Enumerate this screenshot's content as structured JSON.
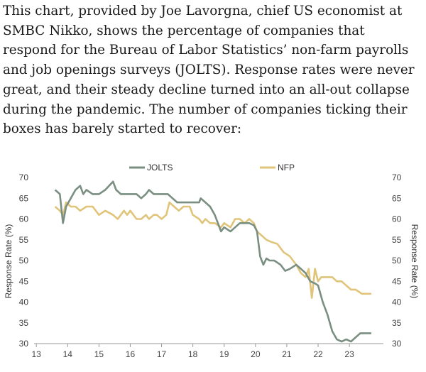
{
  "article": {
    "paragraph": "This chart, provided by Joe Lavorgna, chief US economist at SMBC Nikko, shows the percentage of companies that respond for the Bureau of Labor Statistics’ non-farm payrolls and job openings surveys (JOLTS). Response rates were never great, and their steady decline turned into an all-out collapse during the pandemic. The number of companies ticking their boxes has barely started to recover:"
  },
  "chart_data": {
    "type": "line",
    "ylabel_left": "Response Rate (%)",
    "ylabel_right": "Response Rate (%)",
    "ylim": [
      30,
      70
    ],
    "xlim": [
      2013,
      2024
    ],
    "x_tick_labels": [
      "13",
      "14",
      "15",
      "16",
      "17",
      "18",
      "19",
      "20",
      "21",
      "22",
      "23"
    ],
    "y_tick_labels": [
      "30",
      "35",
      "40",
      "45",
      "50",
      "55",
      "60",
      "65",
      "70"
    ],
    "grid": false,
    "legend_position": "top-center",
    "colors": {
      "JOLTS": "#7a8f82",
      "NFP": "#e0c47a"
    },
    "series": [
      {
        "name": "JOLTS",
        "x": [
          2013.6,
          2013.75,
          2013.85,
          2013.95,
          2014.1,
          2014.25,
          2014.4,
          2014.5,
          2014.6,
          2014.8,
          2015.0,
          2015.2,
          2015.45,
          2015.55,
          2015.7,
          2015.85,
          2016.0,
          2016.2,
          2016.35,
          2016.5,
          2016.6,
          2016.75,
          2016.85,
          2017.0,
          2017.2,
          2017.35,
          2017.5,
          2017.7,
          2017.9,
          2018.0,
          2018.2,
          2018.25,
          2018.4,
          2018.55,
          2018.7,
          2018.8,
          2018.9,
          2019.0,
          2019.2,
          2019.35,
          2019.5,
          2019.65,
          2019.8,
          2019.95,
          2020.05,
          2020.15,
          2020.25,
          2020.35,
          2020.45,
          2020.6,
          2020.8,
          2020.95,
          2021.1,
          2021.3,
          2021.45,
          2021.6,
          2021.75,
          2021.9,
          2022.0,
          2022.15,
          2022.3,
          2022.45,
          2022.6,
          2022.75,
          2022.9,
          2023.05,
          2023.2,
          2023.35,
          2023.5,
          2023.7
        ],
        "values": [
          67,
          66,
          59,
          63,
          65,
          67,
          68,
          66,
          67,
          66,
          66,
          67,
          69,
          67,
          66,
          66,
          66,
          66,
          65,
          66,
          67,
          66,
          66,
          66,
          66,
          65,
          64,
          64,
          64,
          64,
          64,
          65,
          64,
          63,
          61,
          59,
          57,
          58,
          57,
          58,
          59,
          59,
          59,
          58.5,
          57,
          51,
          49,
          50.5,
          50,
          50,
          49,
          47.5,
          48,
          49,
          48,
          47,
          45,
          44.5,
          44,
          40,
          37,
          33,
          31,
          30.5,
          31,
          30.5,
          31.5,
          32.5,
          32.5,
          32.5
        ]
      },
      {
        "name": "NFP",
        "x": [
          2013.6,
          2013.75,
          2013.85,
          2013.95,
          2014.1,
          2014.25,
          2014.4,
          2014.6,
          2014.8,
          2015.0,
          2015.2,
          2015.45,
          2015.6,
          2015.8,
          2015.9,
          2016.0,
          2016.2,
          2016.35,
          2016.5,
          2016.6,
          2016.75,
          2016.85,
          2017.0,
          2017.15,
          2017.25,
          2017.4,
          2017.55,
          2017.7,
          2017.9,
          2018.0,
          2018.2,
          2018.3,
          2018.4,
          2018.55,
          2018.7,
          2018.9,
          2019.0,
          2019.2,
          2019.35,
          2019.5,
          2019.65,
          2019.8,
          2019.95,
          2020.05,
          2020.2,
          2020.35,
          2020.5,
          2020.7,
          2020.9,
          2021.1,
          2021.3,
          2021.45,
          2021.6,
          2021.7,
          2021.8,
          2021.9,
          2022.0,
          2022.1,
          2022.25,
          2022.45,
          2022.6,
          2022.75,
          2022.9,
          2023.05,
          2023.2,
          2023.4,
          2023.55,
          2023.7
        ],
        "values": [
          63,
          62,
          61,
          64,
          63,
          63,
          62,
          63,
          63,
          61,
          62,
          61,
          60,
          62,
          61,
          62,
          60,
          60,
          61,
          60,
          61,
          61,
          60,
          61,
          64,
          63,
          62,
          63,
          63,
          61,
          60,
          59,
          60,
          59,
          59,
          58,
          59,
          58,
          60,
          60,
          59,
          60,
          59,
          57,
          56,
          55,
          54.5,
          54,
          52,
          51,
          49,
          47,
          46,
          48,
          41,
          48,
          45,
          46,
          46,
          46,
          45,
          45,
          44,
          43,
          43,
          42,
          42,
          42
        ]
      }
    ]
  }
}
